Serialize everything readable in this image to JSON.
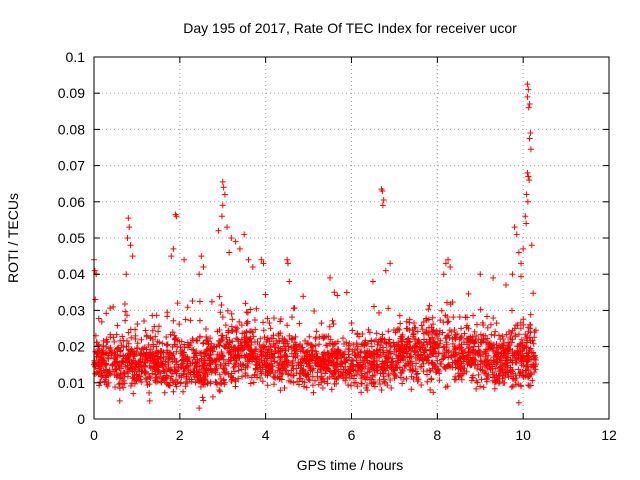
{
  "chart_data": {
    "type": "scatter",
    "title": "Day 195 of 2017, Rate Of TEC Index for receiver ucor",
    "xlabel": "GPS time / hours",
    "ylabel": "ROTI / TECUs",
    "xlim": [
      0,
      12
    ],
    "ylim": [
      0,
      0.1
    ],
    "xticks": [
      "0",
      "2",
      "4",
      "6",
      "8",
      "10",
      "12"
    ],
    "yticks": [
      "0",
      "0.01",
      "0.02",
      "0.03",
      "0.04",
      "0.05",
      "0.06",
      "0.07",
      "0.08",
      "0.09",
      "0.1"
    ],
    "grid": true,
    "marker": "plus",
    "color": "#ff0000",
    "x_range_of_data": [
      0,
      10.3
    ],
    "band_profile": [
      {
        "x": 0.0,
        "base": 0.016,
        "spread": 0.008
      },
      {
        "x": 0.5,
        "base": 0.015,
        "spread": 0.007
      },
      {
        "x": 1.0,
        "base": 0.016,
        "spread": 0.008
      },
      {
        "x": 1.5,
        "base": 0.015,
        "spread": 0.007
      },
      {
        "x": 2.0,
        "base": 0.016,
        "spread": 0.008
      },
      {
        "x": 2.5,
        "base": 0.015,
        "spread": 0.008
      },
      {
        "x": 3.0,
        "base": 0.017,
        "spread": 0.009
      },
      {
        "x": 3.5,
        "base": 0.019,
        "spread": 0.009
      },
      {
        "x": 4.0,
        "base": 0.017,
        "spread": 0.008
      },
      {
        "x": 4.5,
        "base": 0.016,
        "spread": 0.008
      },
      {
        "x": 5.0,
        "base": 0.016,
        "spread": 0.007
      },
      {
        "x": 5.5,
        "base": 0.016,
        "spread": 0.007
      },
      {
        "x": 6.0,
        "base": 0.015,
        "spread": 0.007
      },
      {
        "x": 6.5,
        "base": 0.016,
        "spread": 0.008
      },
      {
        "x": 7.0,
        "base": 0.017,
        "spread": 0.008
      },
      {
        "x": 7.5,
        "base": 0.018,
        "spread": 0.009
      },
      {
        "x": 8.0,
        "base": 0.019,
        "spread": 0.009
      },
      {
        "x": 8.5,
        "base": 0.018,
        "spread": 0.009
      },
      {
        "x": 9.0,
        "base": 0.017,
        "spread": 0.008
      },
      {
        "x": 9.5,
        "base": 0.016,
        "spread": 0.008
      },
      {
        "x": 10.0,
        "base": 0.018,
        "spread": 0.009
      },
      {
        "x": 10.3,
        "base": 0.017,
        "spread": 0.008
      }
    ],
    "outliers": [
      {
        "x": 0.0,
        "y": 0.044
      },
      {
        "x": 0.02,
        "y": 0.041
      },
      {
        "x": 0.05,
        "y": 0.04
      },
      {
        "x": 0.03,
        "y": 0.033
      },
      {
        "x": 0.8,
        "y": 0.0555
      },
      {
        "x": 0.82,
        "y": 0.053
      },
      {
        "x": 0.78,
        "y": 0.05
      },
      {
        "x": 0.85,
        "y": 0.048
      },
      {
        "x": 0.9,
        "y": 0.045
      },
      {
        "x": 0.75,
        "y": 0.04
      },
      {
        "x": 1.9,
        "y": 0.0565
      },
      {
        "x": 1.92,
        "y": 0.056
      },
      {
        "x": 1.85,
        "y": 0.047
      },
      {
        "x": 1.8,
        "y": 0.045
      },
      {
        "x": 2.1,
        "y": 0.044
      },
      {
        "x": 2.5,
        "y": 0.045
      },
      {
        "x": 2.55,
        "y": 0.042
      },
      {
        "x": 2.45,
        "y": 0.04
      },
      {
        "x": 3.0,
        "y": 0.0655
      },
      {
        "x": 3.02,
        "y": 0.064
      },
      {
        "x": 3.05,
        "y": 0.062
      },
      {
        "x": 3.0,
        "y": 0.059
      },
      {
        "x": 2.98,
        "y": 0.056
      },
      {
        "x": 3.1,
        "y": 0.053
      },
      {
        "x": 3.2,
        "y": 0.05
      },
      {
        "x": 3.3,
        "y": 0.049
      },
      {
        "x": 3.5,
        "y": 0.051
      },
      {
        "x": 3.4,
        "y": 0.047
      },
      {
        "x": 3.15,
        "y": 0.046
      },
      {
        "x": 3.6,
        "y": 0.044
      },
      {
        "x": 3.7,
        "y": 0.042
      },
      {
        "x": 3.9,
        "y": 0.044
      },
      {
        "x": 3.95,
        "y": 0.043
      },
      {
        "x": 2.9,
        "y": 0.052
      },
      {
        "x": 4.5,
        "y": 0.044
      },
      {
        "x": 4.52,
        "y": 0.043
      },
      {
        "x": 4.55,
        "y": 0.038
      },
      {
        "x": 5.5,
        "y": 0.039
      },
      {
        "x": 5.6,
        "y": 0.035
      },
      {
        "x": 6.7,
        "y": 0.0635
      },
      {
        "x": 6.72,
        "y": 0.063
      },
      {
        "x": 6.75,
        "y": 0.0605
      },
      {
        "x": 6.73,
        "y": 0.059
      },
      {
        "x": 6.9,
        "y": 0.043
      },
      {
        "x": 6.8,
        "y": 0.041
      },
      {
        "x": 6.5,
        "y": 0.038
      },
      {
        "x": 8.2,
        "y": 0.043
      },
      {
        "x": 8.25,
        "y": 0.044
      },
      {
        "x": 8.3,
        "y": 0.042
      },
      {
        "x": 8.15,
        "y": 0.04
      },
      {
        "x": 9.0,
        "y": 0.04
      },
      {
        "x": 9.3,
        "y": 0.039
      },
      {
        "x": 9.6,
        "y": 0.037
      },
      {
        "x": 9.8,
        "y": 0.053
      },
      {
        "x": 9.85,
        "y": 0.051
      },
      {
        "x": 9.9,
        "y": 0.046
      },
      {
        "x": 9.95,
        "y": 0.043
      },
      {
        "x": 9.75,
        "y": 0.04
      },
      {
        "x": 10.0,
        "y": 0.047
      },
      {
        "x": 10.1,
        "y": 0.0925
      },
      {
        "x": 10.12,
        "y": 0.091
      },
      {
        "x": 10.1,
        "y": 0.089
      },
      {
        "x": 10.15,
        "y": 0.087
      },
      {
        "x": 10.13,
        "y": 0.086
      },
      {
        "x": 10.17,
        "y": 0.079
      },
      {
        "x": 10.15,
        "y": 0.0775
      },
      {
        "x": 10.18,
        "y": 0.0745
      },
      {
        "x": 10.1,
        "y": 0.068
      },
      {
        "x": 10.12,
        "y": 0.067
      },
      {
        "x": 10.14,
        "y": 0.066
      },
      {
        "x": 10.08,
        "y": 0.062
      },
      {
        "x": 10.11,
        "y": 0.06
      },
      {
        "x": 10.05,
        "y": 0.056
      },
      {
        "x": 10.07,
        "y": 0.054
      },
      {
        "x": 10.2,
        "y": 0.048
      },
      {
        "x": 9.9,
        "y": 0.0045
      },
      {
        "x": 2.45,
        "y": 0.003
      },
      {
        "x": 0.6,
        "y": 0.005
      },
      {
        "x": 1.3,
        "y": 0.005
      }
    ]
  }
}
